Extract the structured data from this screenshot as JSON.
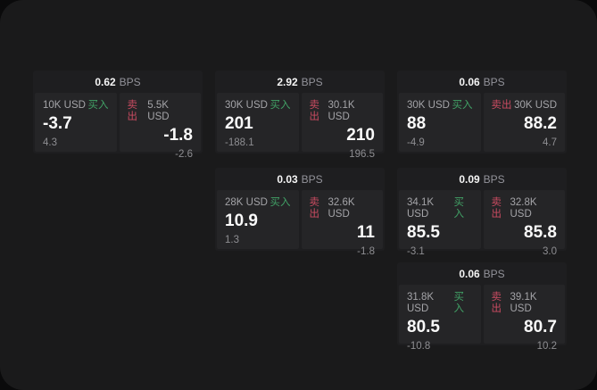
{
  "colors": {
    "page_background": "#0a0a0b",
    "panel_background": "#1a1a1b",
    "card_background": "#1e1e20",
    "tile_background": "#252527",
    "buy_green": "#41a166",
    "sell_red": "#c94b61",
    "primary_text": "#fafafa",
    "muted_text": "#a4a4a8"
  },
  "labels": {
    "bps": "BPS",
    "buy": "买入",
    "sell": "卖出"
  },
  "cards": [
    {
      "bps": "0.62",
      "buy": {
        "amount": "10K USD",
        "value": "-3.7",
        "sub": "4.3"
      },
      "sell": {
        "amount": "5.5K USD",
        "value": "-1.8",
        "sub": "-2.6"
      }
    },
    {
      "bps": "2.92",
      "buy": {
        "amount": "30K USD",
        "value": "201",
        "sub": "-188.1"
      },
      "sell": {
        "amount": "30.1K USD",
        "value": "210",
        "sub": "196.5"
      }
    },
    {
      "bps": "0.06",
      "buy": {
        "amount": "30K USD",
        "value": "88",
        "sub": "-4.9"
      },
      "sell": {
        "amount": "30K USD",
        "value": "88.2",
        "sub": "4.7"
      }
    },
    {
      "bps": "0.03",
      "buy": {
        "amount": "28K USD",
        "value": "10.9",
        "sub": "1.3"
      },
      "sell": {
        "amount": "32.6K USD",
        "value": "11",
        "sub": "-1.8"
      }
    },
    {
      "bps": "0.09",
      "buy": {
        "amount": "34.1K USD",
        "value": "85.5",
        "sub": "-3.1"
      },
      "sell": {
        "amount": "32.8K USD",
        "value": "85.8",
        "sub": "3.0"
      }
    },
    {
      "bps": "0.06",
      "buy": {
        "amount": "31.8K USD",
        "value": "80.5",
        "sub": "-10.8"
      },
      "sell": {
        "amount": "39.1K USD",
        "value": "80.7",
        "sub": "10.2"
      }
    }
  ]
}
